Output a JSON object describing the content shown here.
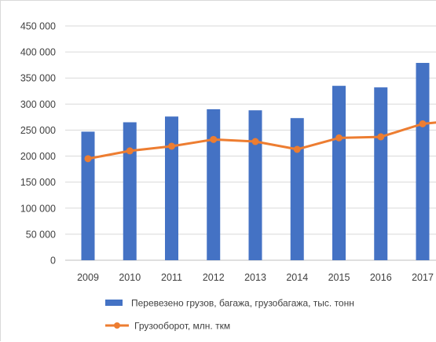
{
  "chart_data": {
    "type": "bar",
    "categories": [
      "2009",
      "2010",
      "2011",
      "2012",
      "2013",
      "2014",
      "2015",
      "2016",
      "2017"
    ],
    "ylim": [
      0,
      450000
    ],
    "yticks": [
      0,
      50000,
      100000,
      150000,
      200000,
      250000,
      300000,
      350000,
      400000,
      450000
    ],
    "ytick_labels": [
      "0",
      "50 000",
      "100 000",
      "150 000",
      "200 000",
      "250 000",
      "300 000",
      "350 000",
      "400 000",
      "450 000"
    ],
    "grid": true,
    "legend_position": "bottom",
    "series": [
      {
        "name": "Перевезено грузов, багажа, грузобагажа, тыс. тонн",
        "type": "bar",
        "color": "#4472C4",
        "values": [
          247000,
          265000,
          276000,
          290000,
          288000,
          273000,
          335000,
          332000,
          379000
        ]
      },
      {
        "name": "Грузооборот, млн. ткм",
        "type": "line",
        "color": "#ED7D31",
        "values": [
          195000,
          210000,
          219000,
          232000,
          228000,
          213000,
          235000,
          237000,
          262000
        ],
        "continues_to": 270000
      }
    ]
  }
}
